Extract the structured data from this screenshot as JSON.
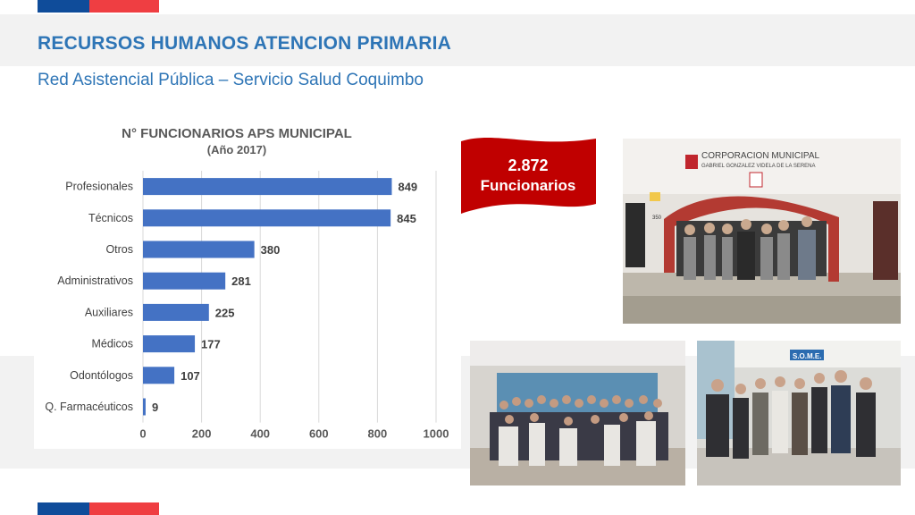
{
  "header": {
    "title": "RECURSOS HUMANOS ATENCION PRIMARIA",
    "subtitle": "Red Asistencial Pública – Servicio Salud Coquimbo"
  },
  "colors": {
    "flag_blue": "#0f4c9a",
    "flag_red": "#ef3e42",
    "title_blue": "#2e75b6",
    "bar_blue": "#4472c4",
    "banner_red": "#c00000"
  },
  "chart_data": {
    "type": "bar",
    "orientation": "horizontal",
    "title": "N° FUNCIONARIOS APS MUNICIPAL",
    "subtitle": "(Año 2017)",
    "categories": [
      "Profesionales",
      "Técnicos",
      "Otros",
      "Administrativos",
      "Auxiliares",
      "Médicos",
      "Odontólogos",
      "Q. Farmacéuticos"
    ],
    "values": [
      849,
      845,
      380,
      281,
      225,
      177,
      107,
      9
    ],
    "xlim": [
      0,
      1000
    ],
    "x_ticks": [
      0,
      200,
      400,
      600,
      800,
      1000
    ],
    "grid": "vertical",
    "data_labels": true
  },
  "banner": {
    "number": "2.872",
    "label": "Funcionarios"
  },
  "photos": {
    "top_sign_line1": "CORPORACION MUNICIPAL",
    "top_sign_line2": "GABRIEL GONZALEZ VIDELA DE LA SERENA",
    "top_door_number": "350",
    "right_sign": "S.O.M.E."
  }
}
